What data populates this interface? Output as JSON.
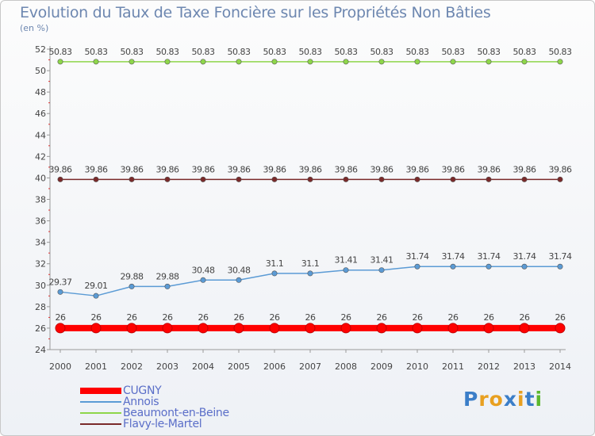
{
  "title": "Evolution du Taux de Taxe Foncière sur les Propriétés Non Bâties",
  "subtitle": "(en %)",
  "logo": {
    "text": "Proxiti",
    "colors": [
      "#3b7ec8",
      "#e8a020",
      "#e8a020",
      "#3b7ec8",
      "#e8a020",
      "#3b7ec8",
      "#5cb82e"
    ]
  },
  "chart_data": {
    "type": "line",
    "x": [
      "2000",
      "2001",
      "2002",
      "2003",
      "2004",
      "2005",
      "2006",
      "2007",
      "2008",
      "2009",
      "2010",
      "2011",
      "2012",
      "2013",
      "2014"
    ],
    "ylim": [
      24,
      52
    ],
    "yticks": [
      24,
      26,
      28,
      30,
      32,
      34,
      36,
      38,
      40,
      42,
      44,
      46,
      48,
      50,
      52
    ],
    "legend_position": "bottom-left",
    "series": [
      {
        "name": "CUGNY",
        "color": "#ff0000",
        "width": 8,
        "values": [
          26,
          26,
          26,
          26,
          26,
          26,
          26,
          26,
          26,
          26,
          26,
          26,
          26,
          26,
          26
        ],
        "labels": [
          "26",
          "26",
          "26",
          "26",
          "26",
          "26",
          "26",
          "26",
          "26",
          "26",
          "26",
          "26",
          "26",
          "26",
          "26"
        ]
      },
      {
        "name": "Annois",
        "color": "#5b9bd5",
        "width": 1.5,
        "values": [
          29.37,
          29.01,
          29.88,
          29.88,
          30.48,
          30.48,
          31.1,
          31.1,
          31.41,
          31.41,
          31.74,
          31.74,
          31.74,
          31.74,
          31.74
        ],
        "labels": [
          "29.37",
          "29.01",
          "29.88",
          "29.88",
          "30.48",
          "30.48",
          "31.1",
          "31.1",
          "31.41",
          "31.41",
          "31.74",
          "31.74",
          "31.74",
          "31.74",
          "31.74"
        ]
      },
      {
        "name": "Beaumont-en-Beine",
        "color": "#8ed64a",
        "width": 1.5,
        "values": [
          50.83,
          50.83,
          50.83,
          50.83,
          50.83,
          50.83,
          50.83,
          50.83,
          50.83,
          50.83,
          50.83,
          50.83,
          50.83,
          50.83,
          50.83
        ],
        "labels": [
          "50.83",
          "50.83",
          "50.83",
          "50.83",
          "50.83",
          "50.83",
          "50.83",
          "50.83",
          "50.83",
          "50.83",
          "50.83",
          "50.83",
          "50.83",
          "50.83",
          "50.83"
        ]
      },
      {
        "name": "Flavy-le-Martel",
        "color": "#7a2a2a",
        "width": 1.5,
        "values": [
          39.86,
          39.86,
          39.86,
          39.86,
          39.86,
          39.86,
          39.86,
          39.86,
          39.86,
          39.86,
          39.86,
          39.86,
          39.86,
          39.86,
          39.86
        ],
        "labels": [
          "39.86",
          "39.86",
          "39.86",
          "39.86",
          "39.86",
          "39.86",
          "39.86",
          "39.86",
          "39.86",
          "39.86",
          "39.86",
          "39.86",
          "39.86",
          "39.86",
          "39.86"
        ]
      }
    ]
  }
}
